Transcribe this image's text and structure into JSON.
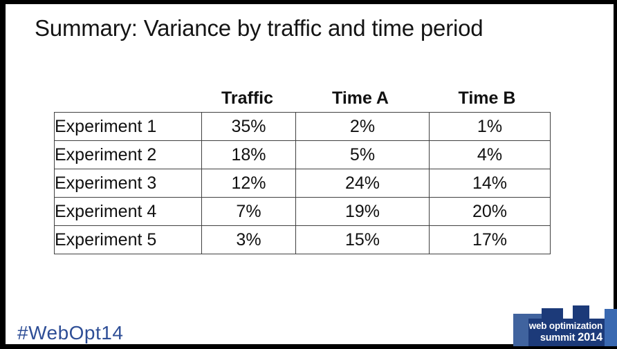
{
  "slide": {
    "title": "Summary: Variance by traffic and time period",
    "hashtag": "#WebOpt14"
  },
  "table": {
    "columns": [
      "Traffic",
      "Time A",
      "Time B"
    ],
    "rows": [
      [
        "Experiment 1",
        "35%",
        "2%",
        "1%"
      ],
      [
        "Experiment 2",
        "18%",
        "5%",
        "4%"
      ],
      [
        "Experiment 3",
        "12%",
        "24%",
        "14%"
      ],
      [
        "Experiment 4",
        "7%",
        "19%",
        "20%"
      ],
      [
        "Experiment 5",
        "3%",
        "15%",
        "17%"
      ]
    ]
  },
  "footer": {
    "logo_line1": "web optimization",
    "logo_line2_prefix": "summit ",
    "logo_year": "2014"
  },
  "colors": {
    "hashtag_blue": "#2e4e96",
    "logo_navy": "#1c3a79",
    "logo_medium_blue": "#40639e",
    "logo_light_blue": "#3a69b1"
  }
}
